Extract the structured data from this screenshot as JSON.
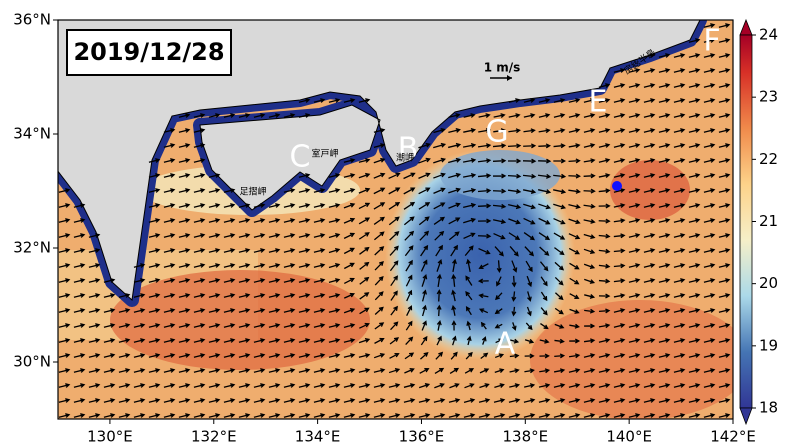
{
  "map": {
    "date": "2019/12/28",
    "xlim": [
      129,
      142
    ],
    "ylim": [
      29,
      36
    ],
    "xticks": [
      {
        "value": 130,
        "label": "130°E"
      },
      {
        "value": 132,
        "label": "132°E"
      },
      {
        "value": 134,
        "label": "134°E"
      },
      {
        "value": 136,
        "label": "136°E"
      },
      {
        "value": 138,
        "label": "138°E"
      },
      {
        "value": 140,
        "label": "140°E"
      },
      {
        "value": 142,
        "label": "142°E"
      }
    ],
    "yticks": [
      {
        "value": 30,
        "label": "30°N"
      },
      {
        "value": 32,
        "label": "32°N"
      },
      {
        "value": 34,
        "label": "34°N"
      },
      {
        "value": 36,
        "label": "36°N"
      }
    ],
    "colorbar": {
      "lim": [
        18,
        24
      ],
      "ticks": [
        18,
        19,
        20,
        21,
        22,
        23,
        24
      ]
    },
    "letters": [
      "A",
      "B",
      "C",
      "E",
      "F",
      "G"
    ],
    "place_names": [
      "室戸岬",
      "足摺岬",
      "潮岬",
      "房総半島"
    ],
    "scale_label": "1 m/s"
  }
}
